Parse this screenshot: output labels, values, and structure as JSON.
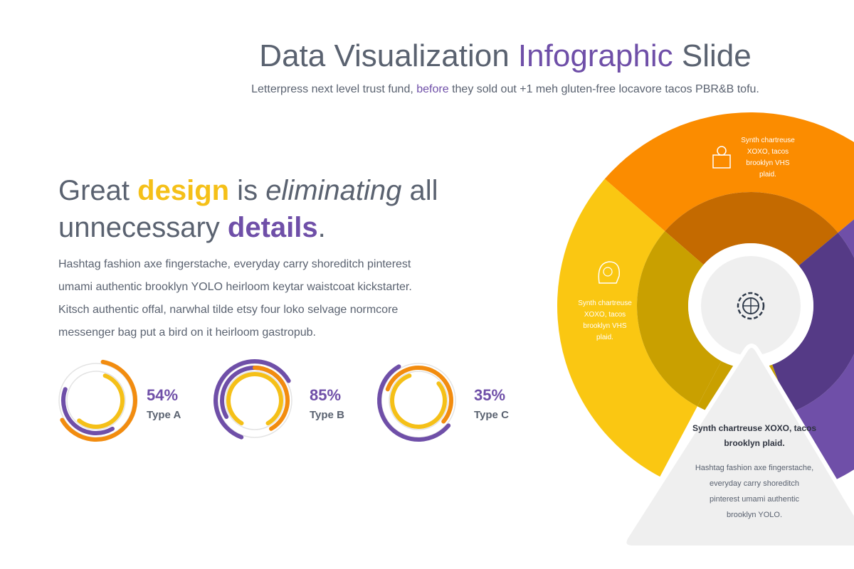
{
  "header": {
    "title": [
      "Data Visualization ",
      "Infographic",
      " Slide"
    ],
    "subtitle": [
      "Letterpress next level trust fund, ",
      "before",
      " they sold out +1 meh gluten-free locavore tacos PBR&B tofu."
    ]
  },
  "headline": [
    "Great ",
    "design",
    " is ",
    "eliminating",
    " all",
    "unnecessary ",
    "details",
    "."
  ],
  "paragraph": [
    "Hashtag fashion axe fingerstache, everyday carry shoreditch pinterest",
    "umami authentic brooklyn YOLO heirloom keytar waistcoat kickstarter.",
    "Kitsch authentic offal, narwhal tilde etsy four loko selvage normcore",
    "messenger bag put a bird on it heirloom gastropub."
  ],
  "stats": [
    {
      "value": "54%",
      "label": "Type A"
    },
    {
      "value": "85%",
      "label": "Type B"
    },
    {
      "value": "35%",
      "label": "Type C"
    }
  ],
  "wheel": {
    "orange_text": [
      "Synth chartreuse",
      "XOXO, tacos",
      "brooklyn VHS",
      "plaid."
    ],
    "yellow_text": [
      "Synth chartreuse",
      "XOXO, tacos",
      "brooklyn VHS",
      "plaid."
    ],
    "card_title": [
      "Synth chartreuse XOXO, tacos",
      "brooklyn plaid."
    ],
    "card_body": [
      "Hashtag fashion axe fingerstache,",
      "everyday carry shoreditch",
      "pinterest umami authentic",
      "brooklyn YOLO."
    ]
  }
}
